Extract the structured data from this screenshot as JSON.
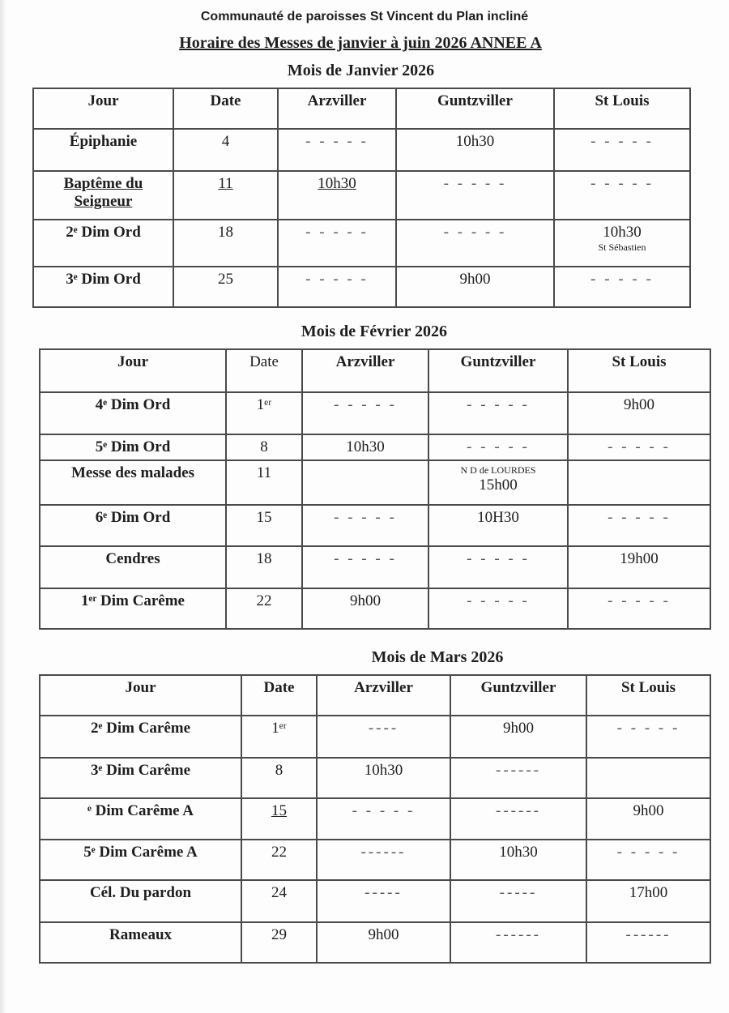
{
  "header": {
    "org": "Communauté de paroisses St Vincent du Plan incliné",
    "title": "Horaire des Messes de janvier à juin 2026 ANNEE A"
  },
  "months": [
    {
      "title": "Mois de Janvier 2026",
      "columns": [
        "Jour",
        "Date",
        "Arzviller",
        "Guntzviller",
        "St Louis"
      ],
      "rows": [
        {
          "cells": [
            {
              "text": "Épiphanie"
            },
            {
              "text": "4"
            },
            {
              "text": "- - - - -"
            },
            {
              "text": "10h30"
            },
            {
              "text": "- - - - -"
            }
          ]
        },
        {
          "cells": [
            {
              "text": "Baptême du Seigneur",
              "underline": true
            },
            {
              "text": "11",
              "underline": true
            },
            {
              "text": "10h30",
              "underline": true
            },
            {
              "text": "- - - - -"
            },
            {
              "text": "- - - - -"
            }
          ]
        },
        {
          "cells": [
            {
              "text": "2ᵉ Dim Ord"
            },
            {
              "text": "18"
            },
            {
              "text": "- - - - -"
            },
            {
              "text": "- - - - -"
            },
            {
              "text": "10h30",
              "note_below": "St Sébastien"
            }
          ]
        },
        {
          "cells": [
            {
              "text": "3ᵉ Dim Ord"
            },
            {
              "text": "25"
            },
            {
              "text": "- - - - -"
            },
            {
              "text": "9h00"
            },
            {
              "text": "- - - - -"
            }
          ]
        }
      ]
    },
    {
      "title": "Mois de Février 2026",
      "columns": [
        "Jour",
        "Date",
        "Arzviller",
        "Guntzviller",
        "St Louis"
      ],
      "rows": [
        {
          "cells": [
            {
              "text": "4ᵉ Dim  Ord"
            },
            {
              "text": "1ᵉʳ"
            },
            {
              "text": "- - - - -"
            },
            {
              "text": "- - - - -"
            },
            {
              "text": "9h00"
            }
          ]
        },
        {
          "cells": [
            {
              "text": "5ᵉ Dim   Ord"
            },
            {
              "text": "8"
            },
            {
              "text": "10h30"
            },
            {
              "text": "- - - - -"
            },
            {
              "text": "- - - - -"
            }
          ]
        },
        {
          "cells": [
            {
              "text": "Messe des malades"
            },
            {
              "text": "11"
            },
            {
              "text": ""
            },
            {
              "text": "15h00",
              "note_above": "N D de LOURDES"
            },
            {
              "text": ""
            }
          ]
        },
        {
          "cells": [
            {
              "text": "6ᵉ Dim   Ord"
            },
            {
              "text": "15"
            },
            {
              "text": "- - - - -"
            },
            {
              "text": "10H30"
            },
            {
              "text": "- - - - -"
            }
          ]
        },
        {
          "cells": [
            {
              "text": "Cendres"
            },
            {
              "text": "18"
            },
            {
              "text": "- - - - -"
            },
            {
              "text": "- - - - -"
            },
            {
              "text": "19h00"
            }
          ]
        },
        {
          "cells": [
            {
              "text": "1ᵉʳ Dim  Carême"
            },
            {
              "text": "22"
            },
            {
              "text": "9h00"
            },
            {
              "text": "- - - - -"
            },
            {
              "text": "- - - - -"
            }
          ]
        }
      ]
    },
    {
      "title": "Mois de Mars 2026",
      "columns": [
        "Jour",
        "Date",
        "Arzviller",
        "Guntzviller",
        "St Louis"
      ],
      "rows": [
        {
          "cells": [
            {
              "text": "2ᵉ Dim   Carême"
            },
            {
              "text": "1ᵉʳ"
            },
            {
              "text": "----"
            },
            {
              "text": "9h00"
            },
            {
              "text": "- - - - -"
            }
          ]
        },
        {
          "cells": [
            {
              "text": "3ᵉ Dim Carême"
            },
            {
              "text": "8"
            },
            {
              "text": "10h30"
            },
            {
              "text": "------"
            },
            {
              "text": ""
            }
          ]
        },
        {
          "cells": [
            {
              "text": "ᵉ Dim Carême A"
            },
            {
              "text": "15",
              "underline": true
            },
            {
              "text": "- - - - -"
            },
            {
              "text": "------"
            },
            {
              "text": "9h00"
            }
          ]
        },
        {
          "cells": [
            {
              "text": "5ᵉ Dim Carême A"
            },
            {
              "text": "22"
            },
            {
              "text": "------"
            },
            {
              "text": "10h30"
            },
            {
              "text": "- - - - -"
            }
          ]
        },
        {
          "cells": [
            {
              "text": "Cél. Du pardon"
            },
            {
              "text": "24"
            },
            {
              "text": "-----"
            },
            {
              "text": "-----"
            },
            {
              "text": "17h00"
            }
          ]
        },
        {
          "cells": [
            {
              "text": "Rameaux"
            },
            {
              "text": "29"
            },
            {
              "text": "9h00"
            },
            {
              "text": "------"
            },
            {
              "text": "------"
            }
          ]
        }
      ]
    }
  ]
}
